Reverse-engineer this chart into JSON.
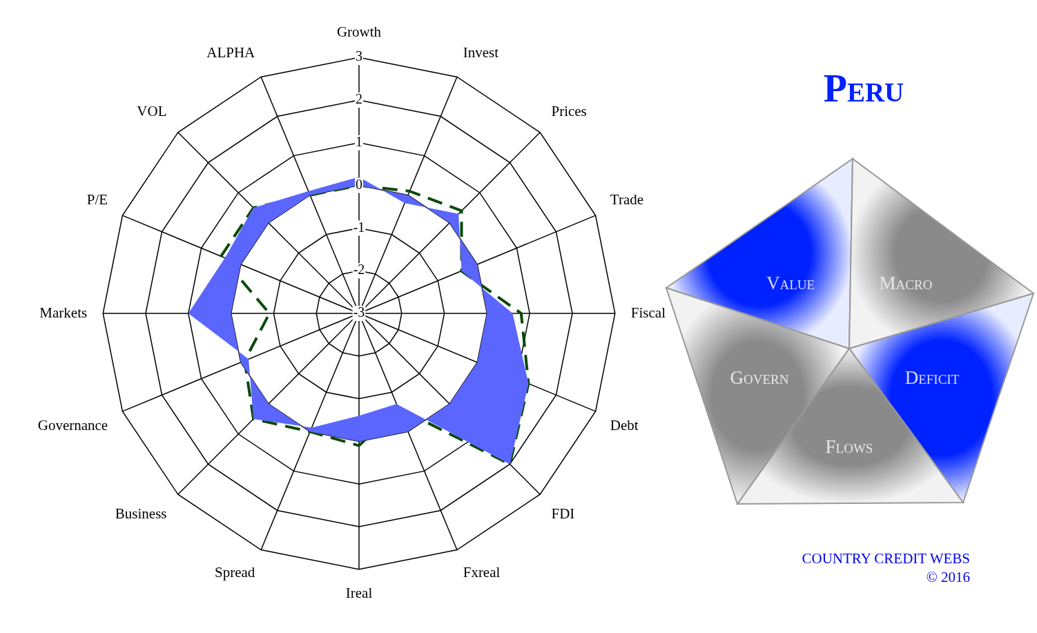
{
  "chart_data": {
    "type": "radar",
    "title": "Peru",
    "categories": [
      "Growth",
      "Invest",
      "Prices",
      "Trade",
      "Fiscal",
      "Debt",
      "FDI",
      "Fxreal",
      "Ireal",
      "Spread",
      "Business",
      "Governance",
      "Markets",
      "P/E",
      "VOL",
      "ALPHA"
    ],
    "series": [
      {
        "color": "#5b66ff",
        "values": [
          0.2,
          -0.2,
          0.3,
          -0.4,
          0.6,
          1.3,
          2.0,
          -0.7,
          -0.6,
          -0.1,
          0.5,
          -0.2,
          1.0,
          0.4,
          0.5,
          0.1
        ]
      },
      {
        "color": "#0b4a0b",
        "line_style": "dashed",
        "values": [
          0.0,
          0.1,
          0.4,
          -0.4,
          0.8,
          1.3,
          2.0,
          -0.6,
          0.1,
          0.0,
          0.5,
          -0.1,
          -0.9,
          0.5,
          0.5,
          0.0
        ]
      }
    ],
    "ylim": [
      -3,
      3
    ],
    "yticks": [
      -3,
      -2,
      -1,
      0,
      1,
      2,
      3
    ],
    "grid": true,
    "legend": false,
    "marker": "none",
    "annotations": [
      "Value",
      "Macro",
      "Deficit",
      "Flows",
      "Govern",
      "COUNTRY CREDIT WEBS",
      "© 2016"
    ]
  }
}
